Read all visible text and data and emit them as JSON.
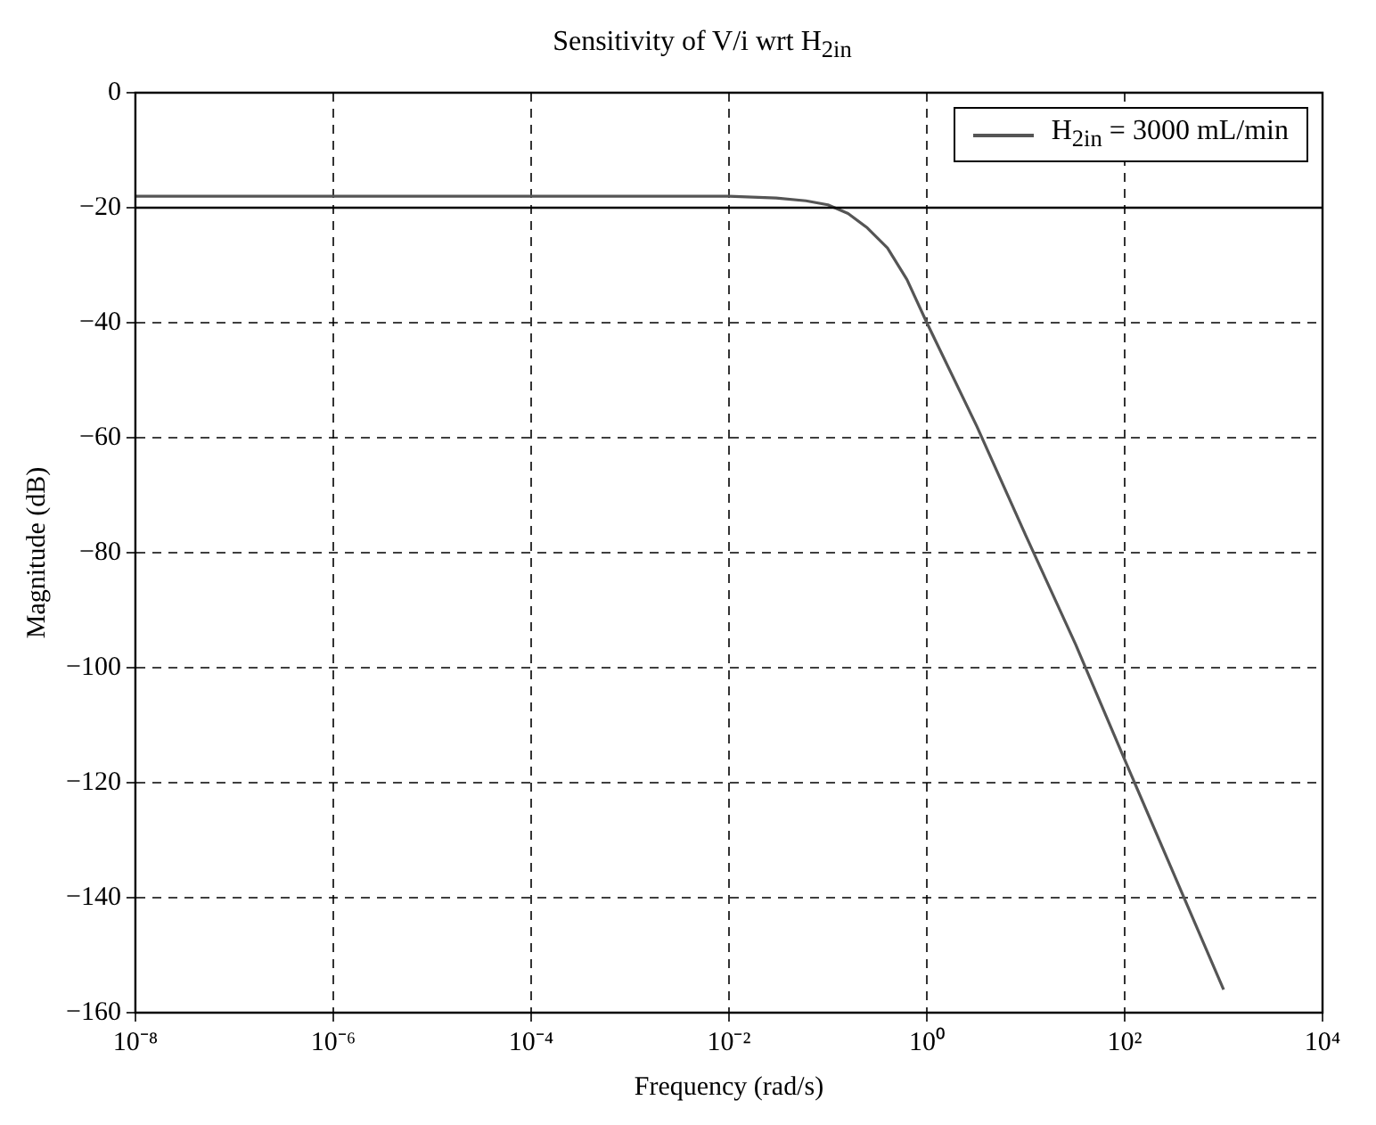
{
  "chart_data": {
    "type": "line",
    "title": "Sensitivity of V/i wrt H$_{2in}$",
    "xlabel": "Frequency (rad/s)",
    "ylabel": "Magnitude (dB)",
    "log": "x",
    "xlim": [
      1e-08,
      10000
    ],
    "ylim": [
      -160,
      0
    ],
    "xticks": [
      {
        "value": 1e-08,
        "label": "10⁻⁸"
      },
      {
        "value": 1e-06,
        "label": "10⁻⁶"
      },
      {
        "value": 0.0001,
        "label": "10⁻⁴"
      },
      {
        "value": 0.01,
        "label": "10⁻²"
      },
      {
        "value": 1,
        "label": "10⁰"
      },
      {
        "value": 100,
        "label": "10²"
      },
      {
        "value": 10000,
        "label": "10⁴"
      }
    ],
    "yticks": [
      -160,
      -140,
      -120,
      -100,
      -80,
      -60,
      -40,
      -20,
      0
    ],
    "grid": true,
    "legend": "top right",
    "line_style": "solid",
    "marker": "none",
    "ref_lines": [
      {
        "axis": "y",
        "value": -20,
        "color": "#000000",
        "line_style": "solid"
      }
    ],
    "x": [
      1e-08,
      1e-06,
      0.0001,
      0.01,
      0.03,
      0.06,
      0.1,
      0.16,
      0.25,
      0.4,
      0.63,
      1,
      3.2,
      10,
      32,
      100,
      316,
      1000
    ],
    "series": [
      {
        "name": "H$_{2in}$ = 3000 mL/min",
        "color": "#555555",
        "values": [
          -18,
          -18,
          -18,
          -18,
          -18.3,
          -18.8,
          -19.5,
          -21,
          -23.5,
          -27,
          -32.5,
          -40,
          -58,
          -77,
          -96,
          -116,
          -136,
          -156
        ]
      }
    ]
  }
}
